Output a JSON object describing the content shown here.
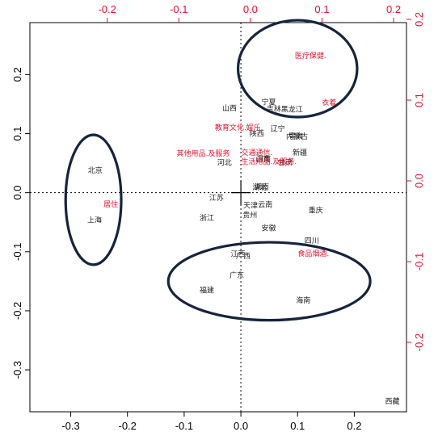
{
  "chart_data": {
    "type": "scatter",
    "title": "",
    "xlabel": "",
    "ylabel": "",
    "subtype": "biplot",
    "primary_axes": {
      "xlim": [
        -0.372,
        0.292
      ],
      "ylim": [
        -0.371,
        0.288
      ],
      "xticks": [
        -0.3,
        -0.2,
        -0.1,
        0.0,
        0.1,
        0.2
      ],
      "xtick_labels": [
        "-0.3",
        "-0.2",
        "-0.1",
        "0.0",
        "0.1",
        "0.2"
      ],
      "yticks": [
        -0.3,
        -0.2,
        -0.1,
        0.0,
        0.1,
        0.2
      ],
      "ytick_labels": [
        "-0.3",
        "-0.2",
        "-0.1",
        "0.0",
        "0.1",
        "0.2"
      ]
    },
    "secondary_axes": {
      "color": "#e8112d",
      "xlim": [
        -0.308,
        0.218
      ],
      "ylim": [
        -0.286,
        0.196
      ],
      "xticks": [
        -0.2,
        -0.1,
        0.0,
        0.1,
        0.2
      ],
      "xtick_labels": [
        "-0.2",
        "-0.1",
        "0.0",
        "0.1",
        "0.2"
      ],
      "yticks": [
        -0.2,
        -0.1,
        0.0,
        0.1,
        0.2
      ],
      "ytick_labels": [
        "-0.2",
        "-0.1",
        "0.0",
        "0.1",
        "0.2"
      ]
    },
    "reference_lines": "dotted lines at x=0 and y=0",
    "provinces": [
      {
        "label": "北京",
        "x": -0.257,
        "y": 0.038
      },
      {
        "label": "上海",
        "x": -0.258,
        "y": -0.046
      },
      {
        "label": "山西",
        "x": -0.02,
        "y": 0.143
      },
      {
        "label": "宁夏",
        "x": 0.049,
        "y": 0.153
      },
      {
        "label": "吉林",
        "x": 0.058,
        "y": 0.142
      },
      {
        "label": "黑龙江",
        "x": 0.09,
        "y": 0.141
      },
      {
        "label": "辽宁",
        "x": 0.065,
        "y": 0.108
      },
      {
        "label": "陕西",
        "x": 0.028,
        "y": 0.1
      },
      {
        "label": "内蒙古",
        "x": 0.099,
        "y": 0.095
      },
      {
        "label": "青海",
        "x": 0.097,
        "y": 0.096
      },
      {
        "label": "新疆",
        "x": 0.104,
        "y": 0.068
      },
      {
        "label": "山东",
        "x": 0.039,
        "y": 0.056
      },
      {
        "label": "河南",
        "x": 0.04,
        "y": 0.057
      },
      {
        "label": "甘肃",
        "x": 0.078,
        "y": 0.051
      },
      {
        "label": "河北",
        "x": -0.029,
        "y": 0.051
      },
      {
        "label": "湖北",
        "x": 0.033,
        "y": 0.009
      },
      {
        "label": "湖南",
        "x": 0.037,
        "y": 0.01
      },
      {
        "label": "江苏",
        "x": -0.043,
        "y": -0.009
      },
      {
        "label": "云南",
        "x": 0.043,
        "y": -0.02
      },
      {
        "label": "天津",
        "x": 0.017,
        "y": -0.022
      },
      {
        "label": "贵州",
        "x": 0.016,
        "y": -0.038
      },
      {
        "label": "浙江",
        "x": -0.06,
        "y": -0.043
      },
      {
        "label": "重庆",
        "x": 0.132,
        "y": -0.03
      },
      {
        "label": "安徽",
        "x": 0.049,
        "y": -0.06
      },
      {
        "label": "四川",
        "x": 0.125,
        "y": -0.081
      },
      {
        "label": "江西",
        "x": -0.005,
        "y": -0.104
      },
      {
        "label": "广西",
        "x": 0.004,
        "y": -0.107
      },
      {
        "label": "广东",
        "x": -0.007,
        "y": -0.14
      },
      {
        "label": "福建",
        "x": -0.06,
        "y": -0.165
      },
      {
        "label": "海南",
        "x": 0.11,
        "y": -0.182
      },
      {
        "label": "西藏",
        "x": 0.267,
        "y": -0.353
      }
    ],
    "categories_secondary": [
      {
        "label": "医疗保健.",
        "x": 0.084,
        "y": 0.155
      },
      {
        "label": "衣着",
        "x": 0.11,
        "y": 0.097
      },
      {
        "label": "教育文化.娱乐.",
        "x": -0.016,
        "y": 0.066
      },
      {
        "label": "交通通信.",
        "x": 0.009,
        "y": 0.035
      },
      {
        "label": "其他用品.及服务",
        "x": -0.066,
        "y": 0.034
      },
      {
        "label": "生活用品.及服务.",
        "x": 0.026,
        "y": 0.024
      },
      {
        "label": "居住",
        "x": -0.195,
        "y": -0.029
      },
      {
        "label": "食品烟酒.",
        "x": 0.088,
        "y": -0.09
      }
    ]
  }
}
